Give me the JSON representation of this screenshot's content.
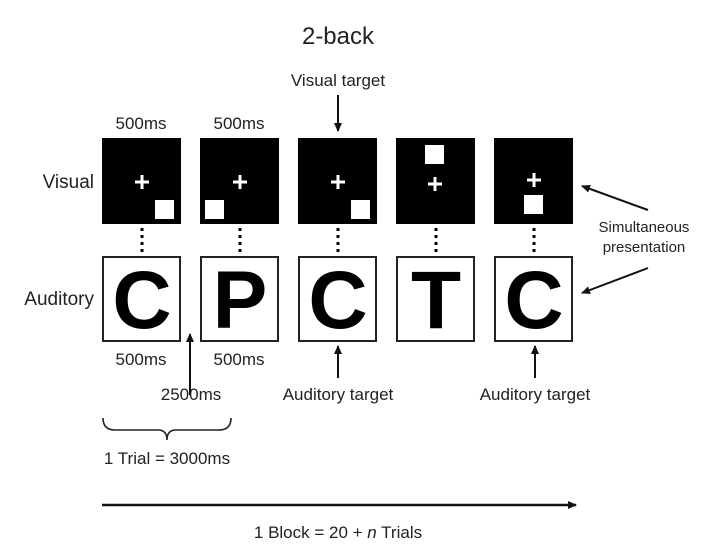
{
  "title": "2-back",
  "row_labels": {
    "visual": "Visual",
    "auditory": "Auditory"
  },
  "trials": [
    {
      "visual_square": "bottom-right",
      "letter": "C"
    },
    {
      "visual_square": "bottom-left",
      "letter": "P"
    },
    {
      "visual_square": "bottom-right",
      "letter": "C"
    },
    {
      "visual_square": "top-center",
      "letter": "T"
    },
    {
      "visual_square": "bottom-center",
      "letter": "C"
    }
  ],
  "annotations": {
    "visual_target": "Visual target",
    "visual_duration_1": "500ms",
    "visual_duration_2": "500ms",
    "auditory_duration_1": "500ms",
    "auditory_duration_2": "500ms",
    "interval": "2500ms",
    "auditory_target_1": "Auditory target",
    "auditory_target_2": "Auditory target",
    "simultaneous_line1": "Simultaneous",
    "simultaneous_line2": "presentation",
    "trial": "1 Trial = 3000ms",
    "block_prefix": "1 Block = 20 + ",
    "block_n": "n",
    "block_suffix": " Trials"
  }
}
